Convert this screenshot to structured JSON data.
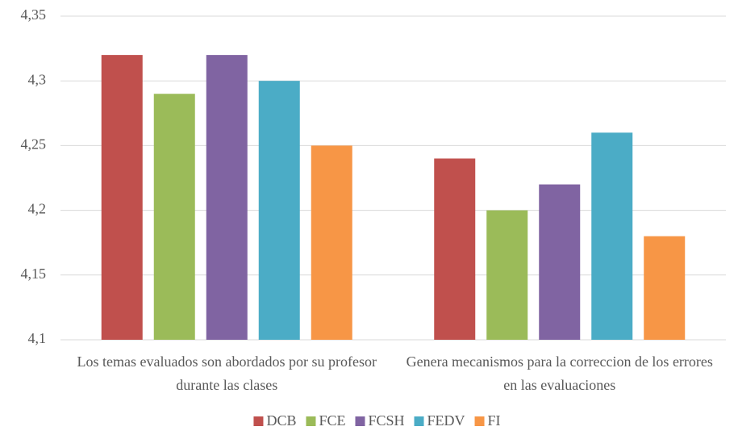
{
  "chart_data": {
    "type": "bar",
    "categories": [
      "Los temas evaluados son abordados por su profesor durante las clases",
      "Genera mecanismos para la correccion de los errores en las evaluaciones"
    ],
    "series": [
      {
        "name": "DCB",
        "color": "#c0504d",
        "values": [
          4.32,
          4.24
        ]
      },
      {
        "name": "FCE",
        "color": "#9bbb59",
        "values": [
          4.29,
          4.2
        ]
      },
      {
        "name": "FCSH",
        "color": "#8064a2",
        "values": [
          4.32,
          4.22
        ]
      },
      {
        "name": "FEDV",
        "color": "#4bacc6",
        "values": [
          4.3,
          4.26
        ]
      },
      {
        "name": "FI",
        "color": "#f79646",
        "values": [
          4.25,
          4.18
        ]
      }
    ],
    "ylim": [
      4.1,
      4.35
    ],
    "yticks": [
      {
        "value": 4.1,
        "label": "4,1"
      },
      {
        "value": 4.15,
        "label": "4,15"
      },
      {
        "value": 4.2,
        "label": "4,2"
      },
      {
        "value": 4.25,
        "label": "4,25"
      },
      {
        "value": 4.3,
        "label": "4,3"
      },
      {
        "value": 4.35,
        "label": "4,35"
      }
    ],
    "grid": true,
    "legend": "bottom"
  }
}
